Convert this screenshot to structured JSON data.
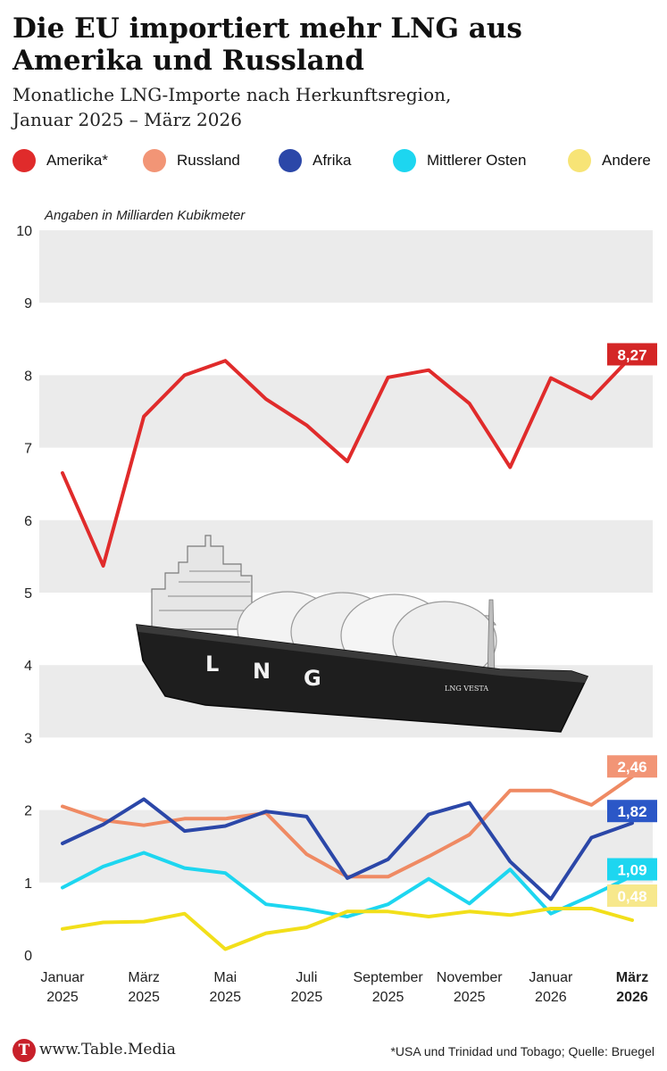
{
  "header": {
    "title": "Die EU importiert mehr LNG aus Amerika und Russland",
    "subtitle_line1": "Monatliche LNG-Importe nach Herkunftsregion,",
    "subtitle_line2": "Januar 2025 – März 2026"
  },
  "legend": [
    {
      "label": "Amerika*",
      "color": "#e02b2b"
    },
    {
      "label": "Russland",
      "color": "#f29576"
    },
    {
      "label": "Afrika",
      "color": "#2b47a8"
    },
    {
      "label": "Mittlerer Osten",
      "color": "#1dd6f0"
    },
    {
      "label": "Andere",
      "color": "#f7e476"
    }
  ],
  "chart_data": {
    "type": "line",
    "unit_label": "Angaben in Milliarden Kubikmeter",
    "ylim": [
      0,
      10
    ],
    "y_ticks": [
      "0",
      "1",
      "2",
      "3",
      "4",
      "5",
      "6",
      "7",
      "8",
      "9",
      "10"
    ],
    "x": [
      "Januar 2025",
      "Februar 2025",
      "März 2025",
      "April 2025",
      "Mai 2025",
      "Juni 2025",
      "Juli 2025",
      "August 2025",
      "September 2025",
      "Oktober 2025",
      "November 2025",
      "Dezember 2025",
      "Januar 2026",
      "Februar 2026",
      "März 2026"
    ],
    "x_tick_labels": [
      {
        "line1": "Januar",
        "line2": "2025",
        "bold": false
      },
      {
        "line1": "März",
        "line2": "2025",
        "bold": false
      },
      {
        "line1": "Mai",
        "line2": "2025",
        "bold": false
      },
      {
        "line1": "Juli",
        "line2": "2025",
        "bold": false
      },
      {
        "line1": "September",
        "line2": "2025",
        "bold": false
      },
      {
        "line1": "November",
        "line2": "2025",
        "bold": false
      },
      {
        "line1": "Januar",
        "line2": "2026",
        "bold": false
      },
      {
        "line1": "März",
        "line2": "2026",
        "bold": true
      }
    ],
    "grid": "alternating horizontal bands",
    "series": [
      {
        "name": "Amerika*",
        "color": "#e02b2b",
        "label_color": "#d42626",
        "end_label": "8,27",
        "values": [
          6.65,
          5.37,
          7.43,
          8.0,
          8.2,
          7.67,
          7.31,
          6.81,
          7.97,
          8.07,
          7.61,
          6.73,
          7.96,
          7.68,
          8.27
        ]
      },
      {
        "name": "Russland",
        "color": "#ef8a63",
        "label_color": "#f29576",
        "end_label": "2,46",
        "values": [
          2.05,
          1.86,
          1.79,
          1.88,
          1.88,
          1.96,
          1.39,
          1.08,
          1.08,
          1.36,
          1.66,
          2.27,
          2.27,
          2.07,
          2.46
        ]
      },
      {
        "name": "Afrika",
        "color": "#2b47a8",
        "label_color": "#2b57c7",
        "end_label": "1,82",
        "values": [
          1.54,
          1.8,
          2.15,
          1.71,
          1.78,
          1.98,
          1.91,
          1.06,
          1.32,
          1.94,
          2.1,
          1.29,
          0.77,
          1.62,
          1.82
        ]
      },
      {
        "name": "Mittlerer Osten",
        "color": "#1dd6f0",
        "label_color": "#1dd6f0",
        "end_label": "1,09",
        "values": [
          0.93,
          1.22,
          1.41,
          1.2,
          1.13,
          0.7,
          0.63,
          0.53,
          0.7,
          1.05,
          0.71,
          1.18,
          0.57,
          0.82,
          1.09
        ]
      },
      {
        "name": "Andere",
        "color": "#f2df1a",
        "label_color": "#f7e88c",
        "end_label": "0,48",
        "values": [
          0.36,
          0.45,
          0.46,
          0.57,
          0.08,
          0.3,
          0.38,
          0.6,
          0.6,
          0.53,
          0.6,
          0.55,
          0.64,
          0.64,
          0.48
        ]
      }
    ]
  },
  "image": {
    "ship_name": "LNG VESTA",
    "hull_letters": [
      "L",
      "N",
      "G"
    ]
  },
  "footer": {
    "logo_letter": "T",
    "url": "www.Table.Media",
    "source": "*USA und Trinidad und Tobago; Quelle: Bruegel"
  }
}
